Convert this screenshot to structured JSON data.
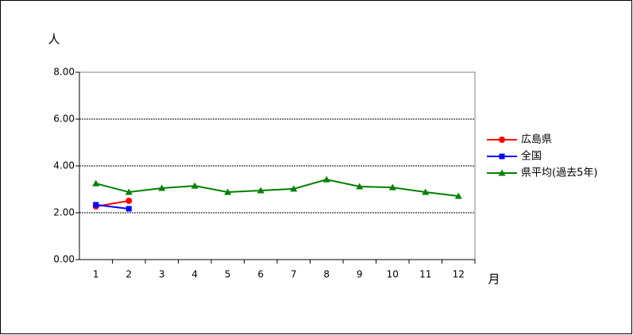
{
  "chart_data": {
    "type": "line",
    "y_label": "人",
    "x_label": "月",
    "categories": [
      "1",
      "2",
      "3",
      "4",
      "5",
      "6",
      "7",
      "8",
      "9",
      "10",
      "11",
      "12"
    ],
    "series": [
      {
        "name": "広島県",
        "color": "#ff0000",
        "marker": "circle",
        "values": [
          2.27,
          2.51,
          null,
          null,
          null,
          null,
          null,
          null,
          null,
          null,
          null,
          null
        ]
      },
      {
        "name": "全国",
        "color": "#0000ff",
        "marker": "square",
        "values": [
          2.34,
          2.17,
          null,
          null,
          null,
          null,
          null,
          null,
          null,
          null,
          null,
          null
        ]
      },
      {
        "name": "県平均(過去5年)",
        "color": "#008000",
        "marker": "triangle",
        "values": [
          3.25,
          2.88,
          3.05,
          3.15,
          2.88,
          2.95,
          3.02,
          3.42,
          3.12,
          3.08,
          2.88,
          2.71
        ]
      }
    ],
    "ylim": [
      0,
      8
    ],
    "yticks": [
      {
        "value": 0,
        "label": "0.00"
      },
      {
        "value": 2,
        "label": "2.00"
      },
      {
        "value": 4,
        "label": "4.00"
      },
      {
        "value": 6,
        "label": "6.00"
      },
      {
        "value": 8,
        "label": "8.00"
      }
    ],
    "grid": true,
    "legend": "right"
  }
}
